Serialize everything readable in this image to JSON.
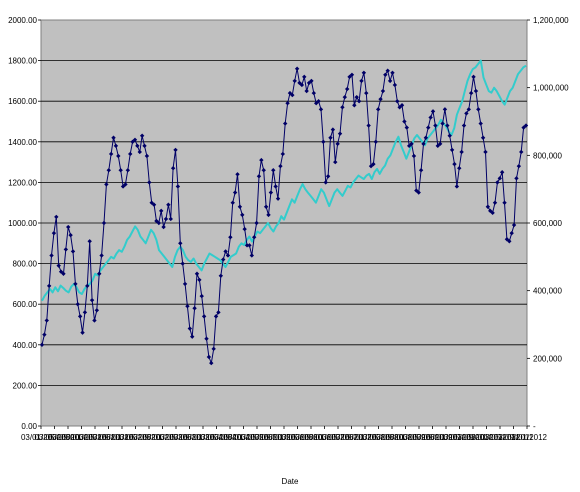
{
  "chart_data": {
    "type": "line",
    "title": "",
    "xlabel": "Date",
    "ylabel": "",
    "y2label": "",
    "plot_background": "#c0c0c0",
    "grid": true,
    "legend": "none",
    "ylim": [
      0,
      2000
    ],
    "y2lim": [
      0,
      1200000
    ],
    "yticks": [
      "0.00",
      "200.00",
      "400.00",
      "600.00",
      "800.00",
      "1000.00",
      "1200.00",
      "1400.00",
      "1600.00",
      "1800.00",
      "2000.00"
    ],
    "y2ticks": [
      "-",
      "200,000",
      "400,000",
      "600,000",
      "800,000",
      "1,000,000",
      "1,200,000"
    ],
    "xticks": [
      "03/01/2000",
      "03/05/2000",
      "03/09/2000",
      "03/01/2001",
      "03/05/2001",
      "03/09/2001",
      "03/01/2002",
      "03/05/2002",
      "03/09/2002",
      "03/01/2003",
      "03/05/2003",
      "03/09/2003",
      "03/01/2004",
      "03/05/2004",
      "03/09/2004",
      "03/01/2005",
      "03/05/2005",
      "03/09/2005",
      "03/01/2006",
      "03/05/2006",
      "03/09/2006",
      "03/01/2007",
      "03/05/2007",
      "03/09/2007",
      "03/01/2008",
      "03/05/2008",
      "03/09/2008",
      "03/01/2009",
      "03/05/2009",
      "03/09/2009",
      "03/01/2010",
      "03/05/2010",
      "03/09/2010",
      "03/01/2011",
      "03/05/2011",
      "03/09/2011",
      "03/01/2012"
    ],
    "xtick_labels_visible": [
      "03/01/2000",
      "03/05/2000",
      "03/09/2000",
      "03/01/2001",
      "03/05/2001",
      "03/09/2001",
      "03/01/2002",
      "03/05/2002",
      "03/09/2002",
      "03/01/2003",
      "03/05/2003",
      "03/09/2003",
      "03/01/2004",
      "03/05/2004",
      "03/09/2004",
      "03/01/2005",
      "03/05/2005",
      "03/09/2005",
      "03/01/2006",
      "03/05/2006",
      "03/09/2006",
      "03/01/2007",
      "03/05/2007",
      "03/09/2007",
      "03/01/2008",
      "03/05/2008",
      "03/09/2008",
      "03/01/2009",
      "03/05/2009",
      "03/09/2009",
      "03/01/2010",
      "03/05/2010",
      "03/09/2010",
      "03/01/2011",
      "03/05/2011",
      "03/09/2011",
      "03/01/2012"
    ],
    "series": [
      {
        "name": "",
        "axis": "left",
        "color": "#000066",
        "marker": "diamond",
        "values": [
          400,
          450,
          520,
          690,
          840,
          950,
          1030,
          790,
          760,
          750,
          870,
          980,
          940,
          860,
          700,
          600,
          540,
          460,
          560,
          690,
          910,
          620,
          520,
          570,
          750,
          840,
          1000,
          1190,
          1260,
          1340,
          1420,
          1380,
          1330,
          1260,
          1180,
          1190,
          1260,
          1340,
          1400,
          1410,
          1380,
          1350,
          1430,
          1380,
          1330,
          1200,
          1100,
          1090,
          1010,
          1000,
          1060,
          980,
          1020,
          1090,
          1020,
          1270,
          1360,
          1180,
          900,
          800,
          700,
          590,
          480,
          440,
          580,
          750,
          720,
          640,
          540,
          430,
          340,
          310,
          380,
          540,
          560,
          740,
          820,
          860,
          840,
          930,
          1100,
          1150,
          1240,
          1080,
          1040,
          970,
          890,
          890,
          840,
          930,
          1000,
          1230,
          1310,
          1260,
          1080,
          1040,
          1150,
          1260,
          1180,
          1120,
          1280,
          1340,
          1490,
          1590,
          1640,
          1630,
          1700,
          1760,
          1690,
          1680,
          1720,
          1650,
          1690,
          1700,
          1640,
          1590,
          1600,
          1560,
          1400,
          1200,
          1230,
          1420,
          1460,
          1300,
          1390,
          1440,
          1570,
          1620,
          1660,
          1720,
          1730,
          1580,
          1620,
          1600,
          1700,
          1740,
          1640,
          1480,
          1280,
          1290,
          1400,
          1560,
          1610,
          1650,
          1730,
          1750,
          1700,
          1740,
          1680,
          1600,
          1570,
          1580,
          1500,
          1470,
          1380,
          1390,
          1330,
          1160,
          1150,
          1260,
          1390,
          1420,
          1470,
          1520,
          1550,
          1480,
          1380,
          1390,
          1490,
          1560,
          1480,
          1430,
          1360,
          1290,
          1180,
          1270,
          1350,
          1480,
          1540,
          1560,
          1640,
          1720,
          1650,
          1560,
          1490,
          1420,
          1350,
          1080,
          1060,
          1050,
          1100,
          1200,
          1220,
          1250,
          1100,
          920,
          910,
          950,
          990,
          1220,
          1280,
          1350,
          1470,
          1480
        ]
      },
      {
        "name": "",
        "axis": "right",
        "color": "#33cccc",
        "marker": "none",
        "values": [
          370000,
          385000,
          395000,
          405000,
          395000,
          410000,
          398000,
          415000,
          408000,
          400000,
          395000,
          412000,
          420000,
          410000,
          395000,
          390000,
          405000,
          415000,
          420000,
          430000,
          450000,
          445000,
          460000,
          470000,
          480000,
          490000,
          500000,
          495000,
          510000,
          520000,
          515000,
          530000,
          550000,
          560000,
          575000,
          590000,
          580000,
          560000,
          550000,
          540000,
          560000,
          580000,
          570000,
          550000,
          520000,
          510000,
          500000,
          490000,
          480000,
          470000,
          500000,
          520000,
          530000,
          520000,
          500000,
          490000,
          485000,
          495000,
          480000,
          470000,
          460000,
          480000,
          495000,
          510000,
          505000,
          500000,
          495000,
          490000,
          480000,
          470000,
          485000,
          500000,
          505000,
          510000,
          530000,
          540000,
          535000,
          550000,
          560000,
          545000,
          560000,
          575000,
          570000,
          580000,
          590000,
          600000,
          585000,
          575000,
          590000,
          600000,
          620000,
          610000,
          630000,
          650000,
          670000,
          660000,
          680000,
          700000,
          715000,
          700000,
          690000,
          680000,
          670000,
          660000,
          680000,
          700000,
          690000,
          670000,
          650000,
          670000,
          690000,
          700000,
          690000,
          680000,
          695000,
          710000,
          705000,
          720000,
          730000,
          740000,
          735000,
          730000,
          740000,
          745000,
          730000,
          750000,
          760000,
          745000,
          760000,
          770000,
          790000,
          800000,
          820000,
          840000,
          855000,
          830000,
          810000,
          790000,
          810000,
          830000,
          850000,
          860000,
          850000,
          840000,
          830000,
          850000,
          860000,
          870000,
          880000,
          890000,
          905000,
          895000,
          885000,
          870000,
          860000,
          880000,
          920000,
          940000,
          960000,
          990000,
          1020000,
          1040000,
          1055000,
          1060000,
          1070000,
          1080000,
          1030000,
          1010000,
          990000,
          985000,
          1000000,
          990000,
          975000,
          960000,
          950000,
          970000,
          990000,
          1000000,
          1020000,
          1040000,
          1050000,
          1060000,
          1065000
        ]
      }
    ]
  }
}
